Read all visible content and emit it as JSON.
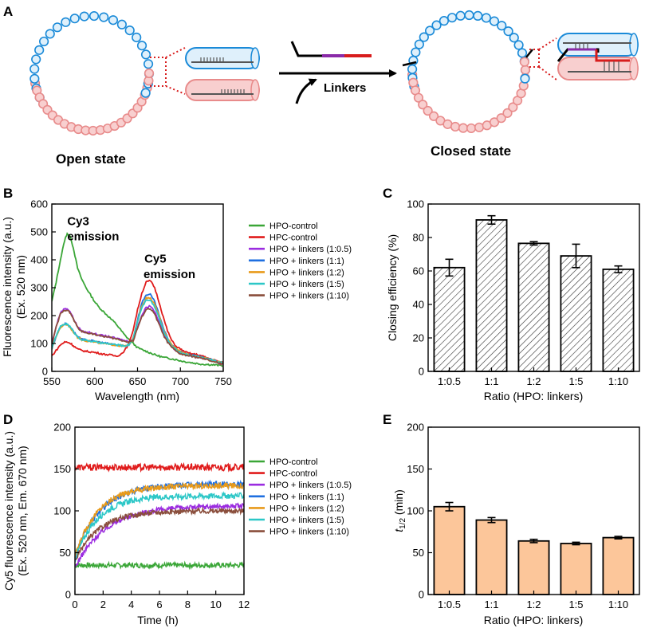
{
  "colors": {
    "blue_bead": "#1a8ad8",
    "blue_fill": "#dff0fb",
    "pink_bead": "#e88b8b",
    "pink_fill": "#f8cfcf",
    "purple": "#8a2aa8",
    "red": "#d81c1c",
    "bar_orange": "#fcc69a"
  },
  "panel_a": {
    "letter": "A",
    "open_label": "Open state",
    "closed_label": "Closed state",
    "arrow_label": "Linkers"
  },
  "chart_data": [
    {
      "id": "B",
      "letter": "B",
      "type": "line",
      "xlabel": "Wavelength (nm)",
      "ylabel": "Fluorescence intensity (a.u.)",
      "ylabel2": "(Ex. 520 nm)",
      "xlim": [
        550,
        750
      ],
      "ylim": [
        0,
        600
      ],
      "xticks": [
        550,
        600,
        650,
        700,
        750
      ],
      "yticks": [
        0,
        100,
        200,
        300,
        400,
        500,
        600
      ],
      "annotations": [
        {
          "text": "Cy3",
          "x": 568,
          "y": 525
        },
        {
          "text": "emission",
          "x": 568,
          "y": 470
        },
        {
          "text": "Cy5",
          "x": 658,
          "y": 390
        },
        {
          "text": "emission",
          "x": 657,
          "y": 335
        }
      ],
      "series": [
        {
          "name": "HPO-control",
          "color": "#3aa637",
          "x": [
            550,
            555,
            560,
            565,
            568,
            572,
            576,
            580,
            585,
            590,
            595,
            600,
            605,
            610,
            615,
            620,
            625,
            630,
            635,
            640,
            645,
            650,
            655,
            660,
            665,
            670,
            675,
            680,
            685,
            690,
            695,
            700,
            705,
            710,
            715,
            720,
            725,
            730,
            735,
            740,
            745,
            750
          ],
          "y": [
            250,
            320,
            400,
            470,
            495,
            480,
            430,
            370,
            330,
            300,
            275,
            250,
            230,
            215,
            200,
            185,
            170,
            150,
            130,
            115,
            100,
            85,
            78,
            72,
            66,
            60,
            55,
            50,
            48,
            45,
            42,
            38,
            35,
            33,
            30,
            28,
            26,
            25,
            24,
            23,
            22,
            20
          ]
        },
        {
          "name": "HPC-control",
          "color": "#e01b1b",
          "x": [
            550,
            555,
            560,
            565,
            568,
            572,
            576,
            580,
            585,
            590,
            595,
            600,
            605,
            610,
            615,
            620,
            625,
            630,
            635,
            640,
            645,
            650,
            655,
            660,
            665,
            670,
            675,
            680,
            685,
            690,
            695,
            700,
            705,
            710,
            715,
            720,
            725,
            730,
            735,
            740,
            745,
            750
          ],
          "y": [
            55,
            75,
            95,
            105,
            105,
            100,
            90,
            80,
            75,
            72,
            70,
            68,
            65,
            62,
            60,
            58,
            55,
            60,
            75,
            100,
            150,
            220,
            280,
            320,
            325,
            300,
            250,
            195,
            145,
            110,
            90,
            80,
            70,
            65,
            62,
            60,
            55,
            50,
            45,
            40,
            35,
            30
          ]
        },
        {
          "name": "HPO + linkers (1:0.5)",
          "color": "#9b2ce0",
          "x": [
            550,
            555,
            560,
            565,
            568,
            572,
            576,
            580,
            585,
            590,
            595,
            600,
            605,
            610,
            615,
            620,
            625,
            630,
            635,
            640,
            645,
            650,
            655,
            660,
            665,
            670,
            675,
            680,
            685,
            690,
            695,
            700,
            705,
            710,
            715,
            720,
            725,
            730,
            735,
            740,
            745,
            750
          ],
          "y": [
            100,
            160,
            210,
            225,
            225,
            210,
            185,
            160,
            145,
            140,
            140,
            135,
            130,
            128,
            125,
            122,
            118,
            115,
            110,
            108,
            115,
            160,
            200,
            230,
            235,
            215,
            180,
            140,
            110,
            90,
            75,
            65,
            60,
            58,
            55,
            52,
            48,
            45,
            40,
            35,
            30,
            25
          ]
        },
        {
          "name": "HPO + linkers (1:1)",
          "color": "#1f6fe0",
          "x": [
            550,
            555,
            560,
            565,
            568,
            572,
            576,
            580,
            585,
            590,
            595,
            600,
            605,
            610,
            615,
            620,
            625,
            630,
            635,
            640,
            645,
            650,
            655,
            660,
            665,
            670,
            675,
            680,
            685,
            690,
            695,
            700,
            705,
            710,
            715,
            720,
            725,
            730,
            735,
            740,
            745,
            750
          ],
          "y": [
            80,
            125,
            160,
            170,
            170,
            158,
            140,
            125,
            115,
            112,
            110,
            108,
            105,
            102,
            100,
            98,
            95,
            92,
            90,
            95,
            120,
            185,
            245,
            275,
            275,
            250,
            205,
            155,
            120,
            95,
            80,
            70,
            65,
            60,
            57,
            55,
            50,
            46,
            42,
            38,
            34,
            30
          ]
        },
        {
          "name": "HPO + linkers (1:2)",
          "color": "#e89a1a",
          "x": [
            550,
            555,
            560,
            565,
            568,
            572,
            576,
            580,
            585,
            590,
            595,
            600,
            605,
            610,
            615,
            620,
            625,
            630,
            635,
            640,
            645,
            650,
            655,
            660,
            665,
            670,
            675,
            680,
            685,
            690,
            695,
            700,
            705,
            710,
            715,
            720,
            725,
            730,
            735,
            740,
            745,
            750
          ],
          "y": [
            80,
            125,
            158,
            168,
            168,
            155,
            138,
            122,
            113,
            110,
            108,
            105,
            102,
            100,
            98,
            96,
            94,
            92,
            90,
            95,
            118,
            180,
            235,
            262,
            262,
            240,
            200,
            152,
            118,
            94,
            80,
            70,
            64,
            60,
            57,
            54,
            50,
            46,
            42,
            38,
            34,
            30
          ]
        },
        {
          "name": "HPO + linkers (1:5)",
          "color": "#2cc7c7",
          "x": [
            550,
            555,
            560,
            565,
            568,
            572,
            576,
            580,
            585,
            590,
            595,
            600,
            605,
            610,
            615,
            620,
            625,
            630,
            635,
            640,
            645,
            650,
            655,
            660,
            665,
            670,
            675,
            680,
            685,
            690,
            695,
            700,
            705,
            710,
            715,
            720,
            725,
            730,
            735,
            740,
            745,
            750
          ],
          "y": [
            82,
            128,
            160,
            170,
            170,
            157,
            140,
            124,
            114,
            111,
            109,
            106,
            103,
            101,
            99,
            97,
            95,
            93,
            91,
            96,
            118,
            178,
            230,
            255,
            255,
            232,
            193,
            148,
            115,
            92,
            78,
            68,
            63,
            59,
            56,
            53,
            49,
            45,
            41,
            37,
            33,
            29
          ]
        },
        {
          "name": "HPO + linkers (1:10)",
          "color": "#8a4e3c",
          "x": [
            550,
            555,
            560,
            565,
            568,
            572,
            576,
            580,
            585,
            590,
            595,
            600,
            605,
            610,
            615,
            620,
            625,
            630,
            635,
            640,
            645,
            650,
            655,
            660,
            665,
            670,
            675,
            680,
            685,
            690,
            695,
            700,
            705,
            710,
            715,
            720,
            725,
            730,
            735,
            740,
            745,
            750
          ],
          "y": [
            95,
            158,
            205,
            220,
            220,
            207,
            182,
            158,
            143,
            138,
            137,
            133,
            128,
            126,
            123,
            120,
            116,
            113,
            108,
            106,
            110,
            155,
            195,
            222,
            225,
            205,
            170,
            132,
            104,
            86,
            72,
            63,
            58,
            56,
            53,
            50,
            46,
            43,
            38,
            34,
            29,
            25
          ]
        }
      ]
    },
    {
      "id": "C",
      "letter": "C",
      "type": "bar",
      "fill": "hatched",
      "xlabel": "Ratio (HPO: linkers)",
      "ylabel": "Closing efficiency (%)",
      "ylim": [
        0,
        100
      ],
      "yticks": [
        0,
        20,
        40,
        60,
        80,
        100
      ],
      "categories": [
        "1:0.5",
        "1:1",
        "1:2",
        "1:5",
        "1:10"
      ],
      "values": [
        62,
        90.5,
        76.5,
        69,
        61
      ],
      "errors": [
        5,
        2.5,
        1,
        7,
        2
      ]
    },
    {
      "id": "D",
      "letter": "D",
      "type": "line",
      "xlabel": "Time (h)",
      "ylabel": "Cy5 fluorescence intensity (a.u.)",
      "ylabel2": "(Ex. 520 nm, Em. 670 nm)",
      "xlim": [
        0,
        12
      ],
      "ylim": [
        0,
        200
      ],
      "xticks": [
        0,
        2,
        4,
        6,
        8,
        10,
        12
      ],
      "yticks": [
        0,
        50,
        100,
        150,
        200
      ],
      "series": [
        {
          "name": "HPO-control",
          "color": "#3aa637",
          "y0": 35,
          "plateau": 35,
          "tau": 1,
          "noise": 3
        },
        {
          "name": "HPC-control",
          "color": "#e01b1b",
          "y0": 152,
          "plateau": 152,
          "tau": 1,
          "noise": 4
        },
        {
          "name": "HPO + linkers (1:0.5)",
          "color": "#9b2ce0",
          "y0": 32,
          "plateau": 106,
          "tau": 2.2,
          "noise": 3
        },
        {
          "name": "HPO + linkers (1:1)",
          "color": "#1f6fe0",
          "y0": 45,
          "plateau": 132,
          "tau": 1.8,
          "noise": 3.5
        },
        {
          "name": "HPO + linkers (1:2)",
          "color": "#e89a1a",
          "y0": 45,
          "plateau": 130,
          "tau": 1.6,
          "noise": 3.5
        },
        {
          "name": "HPO + linkers (1:5)",
          "color": "#2cc7c7",
          "y0": 42,
          "plateau": 118,
          "tau": 1.6,
          "noise": 3.5
        },
        {
          "name": "HPO + linkers (1:10)",
          "color": "#8a4e3c",
          "y0": 40,
          "plateau": 100,
          "tau": 1.7,
          "noise": 3
        }
      ]
    },
    {
      "id": "E",
      "letter": "E",
      "type": "bar",
      "fill": "#fcc69a",
      "xlabel": "Ratio (HPO: linkers)",
      "ylabel_italic": "t",
      "ylabel_sub": "1/2",
      "ylabel_rest": " (min)",
      "ylim": [
        0,
        200
      ],
      "yticks": [
        0,
        50,
        100,
        150,
        200
      ],
      "categories": [
        "1:0.5",
        "1:1",
        "1:2",
        "1:5",
        "1:10"
      ],
      "values": [
        105,
        89,
        64,
        61,
        68
      ],
      "errors": [
        5,
        3,
        2,
        1.5,
        1.5
      ]
    }
  ]
}
